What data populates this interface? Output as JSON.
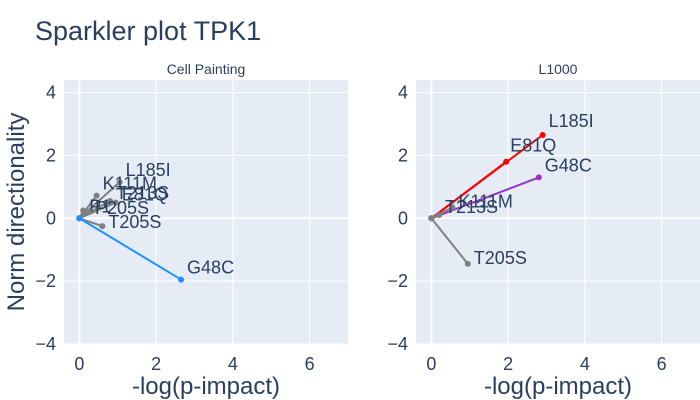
{
  "title": "Sparkler plot TPK1",
  "chart_data": [
    {
      "type": "line",
      "title": "Cell Painting",
      "xlabel": "-log(p-impact)",
      "ylabel": "Norm directionality",
      "xlim": [
        -0.4,
        7
      ],
      "ylim": [
        -4,
        4.4
      ],
      "xticks": [
        0,
        2,
        4,
        6
      ],
      "yticks": [
        -4,
        -2,
        0,
        2,
        4
      ],
      "grid": true,
      "series": [
        {
          "label": "L185I",
          "color": "#808080",
          "x": [
            0,
            1.05
          ],
          "y": [
            0,
            1.15
          ]
        },
        {
          "label": "K111M",
          "color": "#808080",
          "x": [
            0,
            0.45
          ],
          "y": [
            0,
            0.72
          ]
        },
        {
          "label": "T213S",
          "color": "#808080",
          "x": [
            0,
            0.8
          ],
          "y": [
            0,
            0.55
          ]
        },
        {
          "label": "E81Q",
          "color": "#808080",
          "x": [
            0,
            0.95
          ],
          "y": [
            0,
            0.5
          ]
        },
        {
          "label": "P1",
          "color": "#808080",
          "x": [
            0,
            0.1
          ],
          "y": [
            0,
            0.25
          ]
        },
        {
          "label": "P205S",
          "color": "#808080",
          "x": [
            0,
            0.25
          ],
          "y": [
            0,
            0.2
          ]
        },
        {
          "label": "T205S",
          "color": "#808080",
          "x": [
            0,
            0.6
          ],
          "y": [
            0,
            -0.25
          ]
        },
        {
          "label": "G48C",
          "color": "#1e90ff",
          "x": [
            0,
            2.65
          ],
          "y": [
            0,
            -1.95
          ]
        }
      ]
    },
    {
      "type": "line",
      "title": "L1000",
      "xlabel": "-log(p-impact)",
      "ylabel": "",
      "xlim": [
        -0.4,
        7
      ],
      "ylim": [
        -4,
        4.4
      ],
      "xticks": [
        0,
        2,
        4,
        6
      ],
      "yticks": [
        -4,
        -2,
        0,
        2,
        4
      ],
      "grid": true,
      "series": [
        {
          "label": "L185I",
          "color": "#ff0000",
          "x": [
            0,
            2.9
          ],
          "y": [
            0,
            2.65
          ]
        },
        {
          "label": "E81Q",
          "color": "#ff0000",
          "x": [
            0,
            1.95
          ],
          "y": [
            0,
            1.8
          ]
        },
        {
          "label": "G48C",
          "color": "#9932cc",
          "x": [
            0,
            2.8
          ],
          "y": [
            0,
            1.3
          ]
        },
        {
          "label": "K111M",
          "color": "#808080",
          "x": [
            0,
            0.55
          ],
          "y": [
            0,
            0.35
          ]
        },
        {
          "label": "T213S",
          "color": "#808080",
          "x": [
            0,
            0.2
          ],
          "y": [
            0,
            0.1
          ]
        },
        {
          "label": "T205S",
          "color": "#808080",
          "x": [
            0,
            0.95
          ],
          "y": [
            0,
            -1.45
          ]
        }
      ]
    }
  ]
}
